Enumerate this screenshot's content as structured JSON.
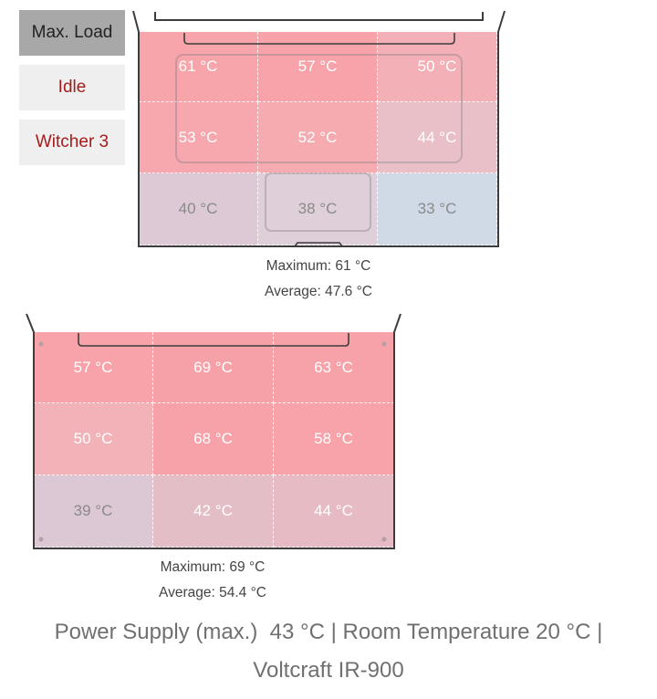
{
  "modes": [
    "Max. Load",
    "Idle",
    "Witcher 3"
  ],
  "top_panel": {
    "cells": [
      [
        "61 °C",
        "57 °C",
        "50 °C"
      ],
      [
        "53 °C",
        "52 °C",
        "44 °C"
      ],
      [
        "40 °C",
        "38 °C",
        "33 °C"
      ]
    ],
    "colors": [
      [
        "#f7a4aa",
        "#f8a3a9",
        "#f3b0b7"
      ],
      [
        "#f6a8ae",
        "#f6abb1",
        "#e9c0c8"
      ],
      [
        "#ddc9d5",
        "#dfcfd9",
        "#d0d9e6"
      ]
    ],
    "maximum": "Maximum: 61 °C",
    "average": "Average: 47.6 °C"
  },
  "bottom_panel": {
    "cells": [
      [
        "57 °C",
        "69 °C",
        "63 °C"
      ],
      [
        "50 °C",
        "68 °C",
        "58 °C"
      ],
      [
        "39 °C",
        "42 °C",
        "44 °C"
      ]
    ],
    "colors": [
      [
        "#f7a3a9",
        "#f6a1a7",
        "#f7a2a8"
      ],
      [
        "#f1b2b8",
        "#f7a1a8",
        "#f7a3a9"
      ],
      [
        "#dcc8d4",
        "#e4bec7",
        "#e6bbc4"
      ]
    ],
    "maximum": "Maximum: 69 °C",
    "average": "Average: 54.4 °C"
  },
  "footer": {
    "line1": "Power Supply (max.)  43 °C | Room Temperature 20 °C |",
    "line2": "Voltcraft IR-900"
  }
}
